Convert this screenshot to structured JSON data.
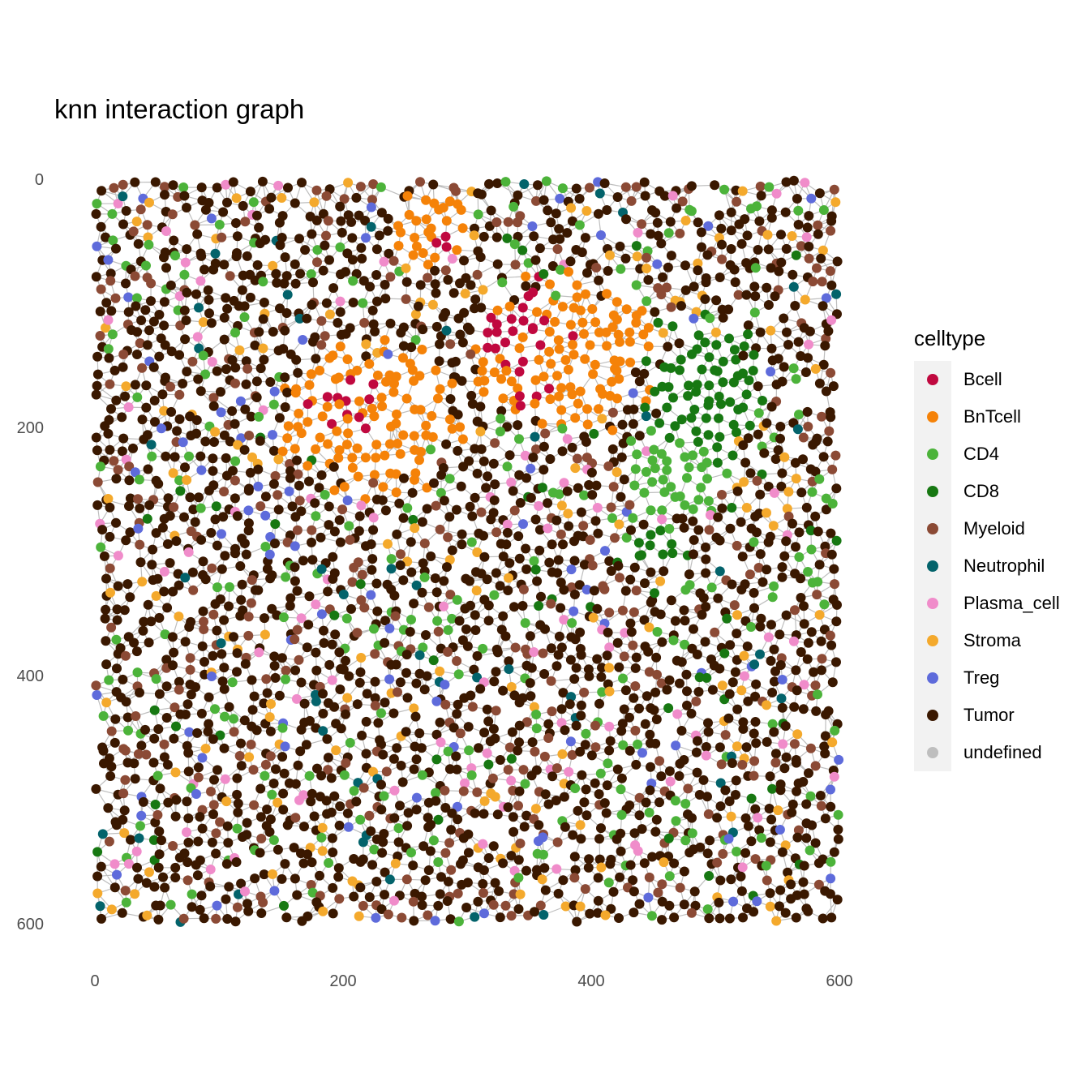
{
  "chart_data": {
    "type": "scatter",
    "title": "knn interaction graph",
    "xlabel": "",
    "ylabel": "",
    "xlim": [
      0,
      600
    ],
    "ylim": [
      600,
      0
    ],
    "y_reversed": true,
    "x_ticks": [
      "0",
      "200",
      "400",
      "600"
    ],
    "y_ticks": [
      "0",
      "200",
      "400",
      "600"
    ],
    "grid": false,
    "edges": "knn graph edges in grey connecting neighbouring cells",
    "edge_color": "#BEBEBE",
    "legend": {
      "title": "celltype",
      "placement": "right",
      "entries": [
        {
          "name": "Bcell",
          "color": "#C0083F"
        },
        {
          "name": "BnTcell",
          "color": "#F58208"
        },
        {
          "name": "CD4",
          "color": "#4CB33A"
        },
        {
          "name": "CD8",
          "color": "#177812"
        },
        {
          "name": "Myeloid",
          "color": "#8B4A35"
        },
        {
          "name": "Neutrophil",
          "color": "#03636B"
        },
        {
          "name": "Plasma_cell",
          "color": "#F08CCA"
        },
        {
          "name": "Stroma",
          "color": "#F4A92C"
        },
        {
          "name": "Treg",
          "color": "#5E6BDB"
        },
        {
          "name": "Tumor",
          "color": "#3A1800"
        },
        {
          "name": "undefined",
          "color": "#BEBEBE"
        }
      ]
    },
    "regions": [
      {
        "celltype": "Bcell",
        "center": [
          205,
          185
        ],
        "spread": [
          38,
          40
        ]
      },
      {
        "celltype": "Bcell",
        "center": [
          355,
          135
        ],
        "spread": [
          50,
          60
        ]
      },
      {
        "celltype": "Bcell",
        "center": [
          280,
          50
        ],
        "spread": [
          15,
          15
        ]
      },
      {
        "celltype": "BnTcell",
        "center": [
          220,
          195
        ],
        "spread": [
          85,
          70
        ]
      },
      {
        "celltype": "BnTcell",
        "center": [
          380,
          140
        ],
        "spread": [
          85,
          75
        ]
      },
      {
        "celltype": "BnTcell",
        "center": [
          270,
          40
        ],
        "spread": [
          40,
          35
        ]
      },
      {
        "celltype": "CD8",
        "center": [
          490,
          170
        ],
        "spread": [
          55,
          75
        ]
      },
      {
        "celltype": "CD8",
        "center": [
          450,
          300
        ],
        "spread": [
          35,
          25
        ]
      },
      {
        "celltype": "CD4",
        "center": [
          470,
          240
        ],
        "spread": [
          45,
          40
        ]
      }
    ],
    "approx_cell_count": 3200
  }
}
